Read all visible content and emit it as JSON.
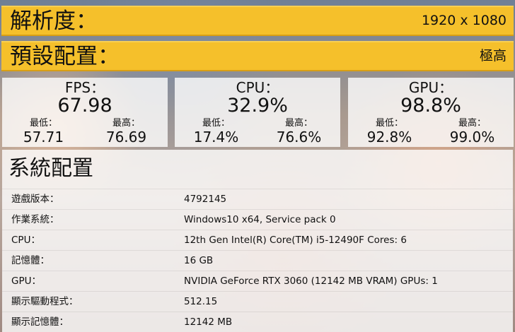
{
  "resolution": {
    "label": "解析度：",
    "value": "1920 x 1080"
  },
  "preset": {
    "label": "預設配置：",
    "value": "極高"
  },
  "stats": {
    "fps": {
      "title": "FPS：",
      "value": "67.98",
      "min_label": "最低：",
      "min": "57.71",
      "max_label": "最高：",
      "max": "76.69"
    },
    "cpu": {
      "title": "CPU：",
      "value": "32.9%",
      "min_label": "最低：",
      "min": "17.4%",
      "max_label": "最高：",
      "max": "76.6%"
    },
    "gpu": {
      "title": "GPU：",
      "value": "98.8%",
      "min_label": "最低：",
      "min": "92.8%",
      "max_label": "最高：",
      "max": "99.0%"
    }
  },
  "system": {
    "title": "系統配置",
    "rows": [
      {
        "key": "遊戲版本：",
        "value": "4792145"
      },
      {
        "key": "作業系統：",
        "value": "Windows10 x64, Service pack 0"
      },
      {
        "key": "CPU：",
        "value": "12th Gen Intel(R) Core(TM) i5-12490F Cores: 6"
      },
      {
        "key": "記憶體：",
        "value": "16 GB"
      },
      {
        "key": "GPU：",
        "value": "NVIDIA GeForce RTX 3060 (12142 MB VRAM) GPUs: 1"
      },
      {
        "key": "顯示驅動程式：",
        "value": "512.15"
      },
      {
        "key": "顯示記憶體：",
        "value": "12142 MB"
      }
    ]
  },
  "colors": {
    "band": "#f5c02b",
    "panel": "rgba(255,255,255,0.80)"
  }
}
